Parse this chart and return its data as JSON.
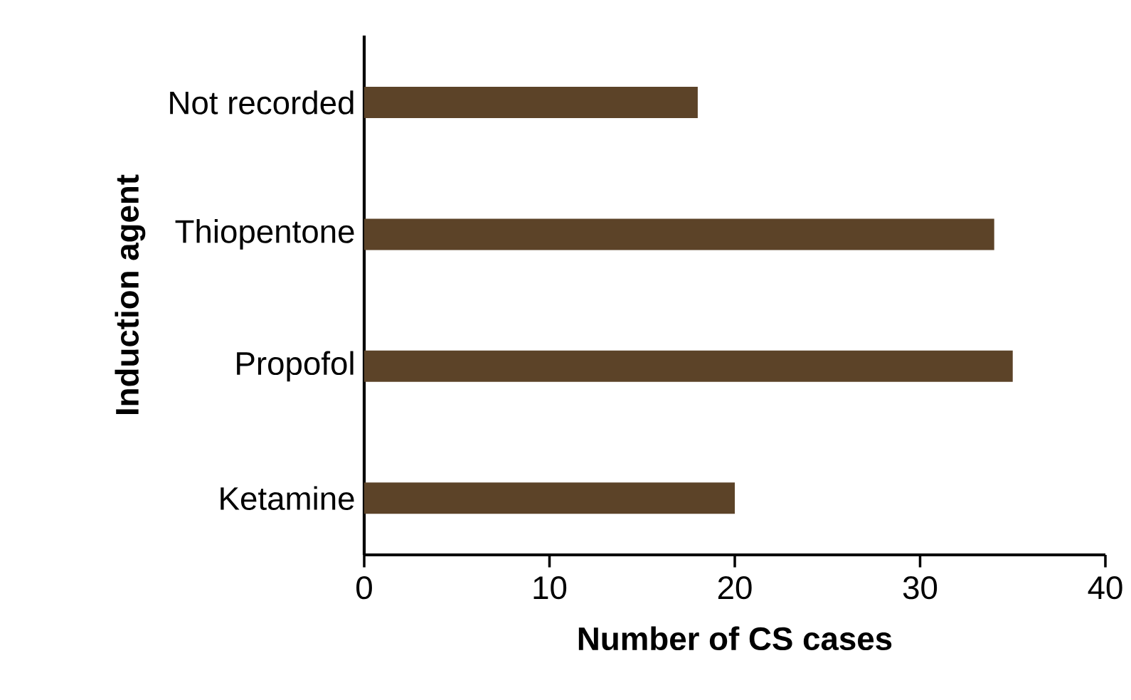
{
  "chart_data": {
    "type": "bar",
    "orientation": "horizontal",
    "xlabel": "Number of CS cases",
    "ylabel": "Induction agent",
    "categories": [
      "Not recorded",
      "Thiopentone",
      "Propofol",
      "Ketamine"
    ],
    "values": [
      18,
      34,
      35,
      20
    ],
    "color": "#5c4328",
    "xlim": [
      0,
      40
    ],
    "xticks": [
      0,
      10,
      20,
      30,
      40
    ],
    "grid": false
  }
}
